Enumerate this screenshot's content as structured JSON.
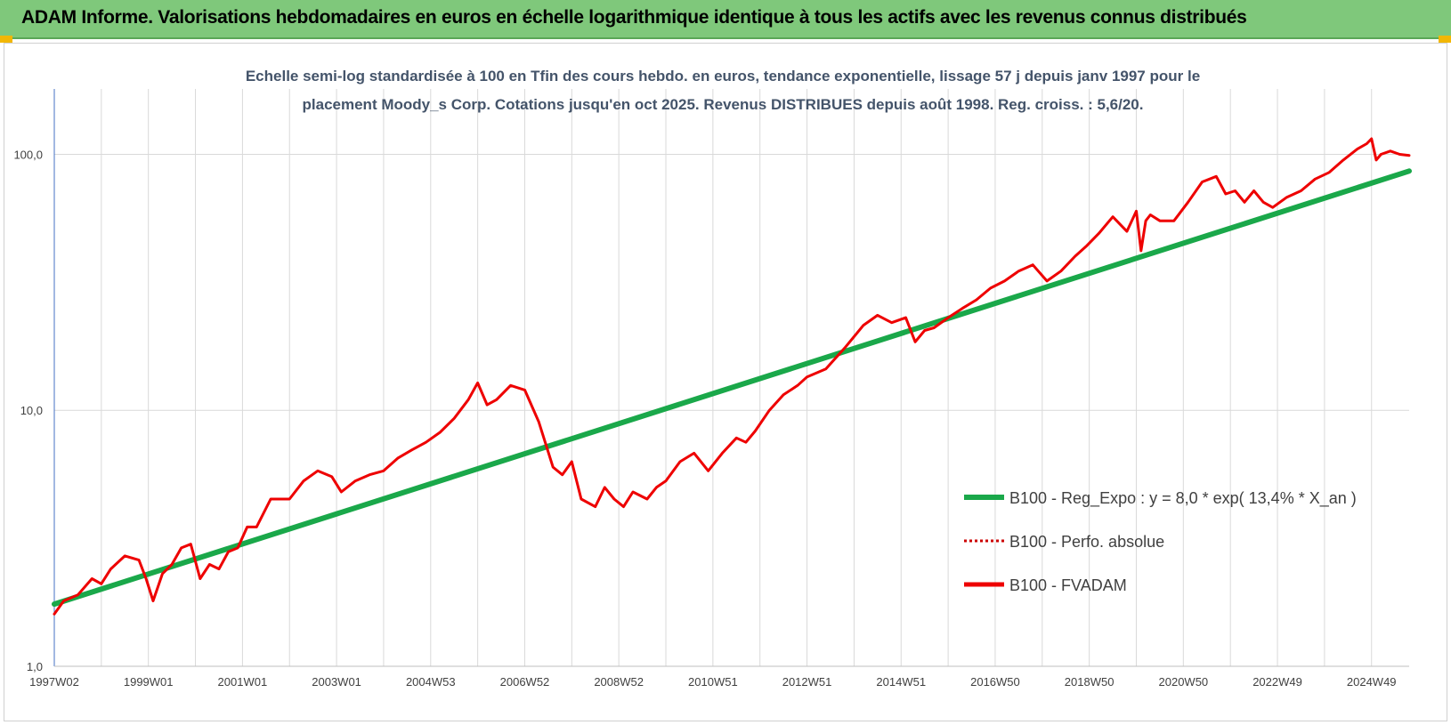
{
  "header": {
    "title": "ADAM Informe. Valorisations hebdomadaires en euros en échelle logarithmique identique à tous les actifs avec les revenus connus distribués"
  },
  "colors": {
    "banner": "#7fc87b",
    "corner": "#f2b705",
    "trend": "#1aa84a",
    "fvadam": "#ee0000",
    "perfo": "#cc0000",
    "subtitle": "#44546a",
    "grid": "#d9d9d9"
  },
  "chart_data": {
    "type": "line",
    "title_lines": [
      "Echelle semi-log standardisée à 100 en Tfin des cours hebdo. en euros, tendance exponentielle, lissage 57 j depuis janv 1997 pour le",
      "placement Moody_s Corp. Cotations jusqu'en oct 2025. Revenus DISTRIBUES depuis août 1998. Reg. croiss. : 5,6/20."
    ],
    "y_scale": "log",
    "ylim": [
      1,
      180
    ],
    "y_ticks": [
      {
        "value": 1,
        "label": "1,0"
      },
      {
        "value": 10,
        "label": "10,0"
      },
      {
        "value": 100,
        "label": "100,0"
      }
    ],
    "xlim": [
      1997.0,
      2025.8
    ],
    "x_ticks": [
      {
        "value": 1997.0,
        "label": "1997W02"
      },
      {
        "value": 1999.0,
        "label": "1999W01"
      },
      {
        "value": 2001.0,
        "label": "2001W01"
      },
      {
        "value": 2003.0,
        "label": "2003W01"
      },
      {
        "value": 2005.0,
        "label": "2004W53"
      },
      {
        "value": 2007.0,
        "label": "2006W52"
      },
      {
        "value": 2009.0,
        "label": "2008W52"
      },
      {
        "value": 2011.0,
        "label": "2010W51"
      },
      {
        "value": 2013.0,
        "label": "2012W51"
      },
      {
        "value": 2015.0,
        "label": "2014W51"
      },
      {
        "value": 2017.0,
        "label": "2016W50"
      },
      {
        "value": 2019.0,
        "label": "2018W50"
      },
      {
        "value": 2021.0,
        "label": "2020W50"
      },
      {
        "value": 2023.0,
        "label": "2022W49"
      },
      {
        "value": 2025.0,
        "label": "2024W49"
      }
    ],
    "grid": "vertical and horizontal",
    "legend_position": "right-middle",
    "series": [
      {
        "name": "B100 - Reg_Expo : y = 8,0 * exp( 13,4% *  X_an )",
        "style": "solid-thick",
        "x": [
          1997.0,
          2025.8
        ],
        "y": [
          1.75,
          86
        ]
      },
      {
        "name": "B100 - Perfo. absolue",
        "style": "dotted",
        "x": [],
        "y": []
      },
      {
        "name": "B100 - FVADAM",
        "style": "solid",
        "x": [
          1997.0,
          1997.2,
          1997.5,
          1997.8,
          1998.0,
          1998.2,
          1998.5,
          1998.8,
          1998.95,
          1999.1,
          1999.3,
          1999.5,
          1999.7,
          1999.9,
          2000.1,
          2000.3,
          2000.5,
          2000.7,
          2000.9,
          2001.1,
          2001.3,
          2001.6,
          2002.0,
          2002.3,
          2002.6,
          2002.9,
          2003.1,
          2003.4,
          2003.7,
          2004.0,
          2004.3,
          2004.6,
          2004.9,
          2005.2,
          2005.5,
          2005.8,
          2006.0,
          2006.2,
          2006.4,
          2006.7,
          2007.0,
          2007.3,
          2007.6,
          2007.8,
          2008.0,
          2008.2,
          2008.5,
          2008.7,
          2008.9,
          2009.1,
          2009.3,
          2009.6,
          2009.8,
          2010.0,
          2010.3,
          2010.6,
          2010.9,
          2011.2,
          2011.5,
          2011.7,
          2011.9,
          2012.2,
          2012.5,
          2012.8,
          2013.0,
          2013.4,
          2013.8,
          2014.2,
          2014.5,
          2014.8,
          2015.1,
          2015.3,
          2015.5,
          2015.7,
          2016.0,
          2016.3,
          2016.6,
          2016.9,
          2017.2,
          2017.5,
          2017.8,
          2018.1,
          2018.4,
          2018.7,
          2018.95,
          2019.2,
          2019.5,
          2019.8,
          2020.0,
          2020.1,
          2020.2,
          2020.3,
          2020.5,
          2020.8,
          2021.1,
          2021.4,
          2021.7,
          2021.9,
          2022.1,
          2022.3,
          2022.5,
          2022.7,
          2022.9,
          2023.2,
          2023.5,
          2023.8,
          2024.1,
          2024.4,
          2024.7,
          2024.9,
          2025.0,
          2025.1,
          2025.2,
          2025.4,
          2025.6,
          2025.8
        ],
        "y": [
          1.6,
          1.8,
          1.9,
          2.2,
          2.1,
          2.4,
          2.7,
          2.6,
          2.2,
          1.8,
          2.3,
          2.5,
          2.9,
          3.0,
          2.2,
          2.5,
          2.4,
          2.8,
          2.9,
          3.5,
          3.5,
          4.5,
          4.5,
          5.3,
          5.8,
          5.5,
          4.8,
          5.3,
          5.6,
          5.8,
          6.5,
          7.0,
          7.5,
          8.2,
          9.3,
          11.0,
          12.8,
          10.5,
          11.0,
          12.5,
          12.0,
          9.0,
          6.0,
          5.6,
          6.3,
          4.5,
          4.2,
          5.0,
          4.5,
          4.2,
          4.8,
          4.5,
          5.0,
          5.3,
          6.3,
          6.8,
          5.8,
          6.8,
          7.8,
          7.5,
          8.3,
          10.0,
          11.5,
          12.5,
          13.5,
          14.5,
          17.5,
          21.5,
          23.5,
          22.0,
          23.0,
          18.5,
          20.5,
          21.0,
          23.0,
          25.0,
          27.0,
          30.0,
          32.0,
          35.0,
          37.0,
          32.0,
          35.0,
          40.0,
          44.0,
          49.0,
          57.0,
          50.0,
          60.0,
          42.0,
          55.0,
          58.0,
          55.0,
          55.0,
          65.0,
          78.0,
          82.0,
          70.0,
          72.0,
          65.0,
          72.0,
          65.0,
          62.0,
          68.0,
          72.0,
          80.0,
          85.0,
          95.0,
          105.0,
          110.0,
          115.0,
          95.0,
          100.0,
          103.0,
          100.0,
          99.0
        ]
      }
    ]
  }
}
